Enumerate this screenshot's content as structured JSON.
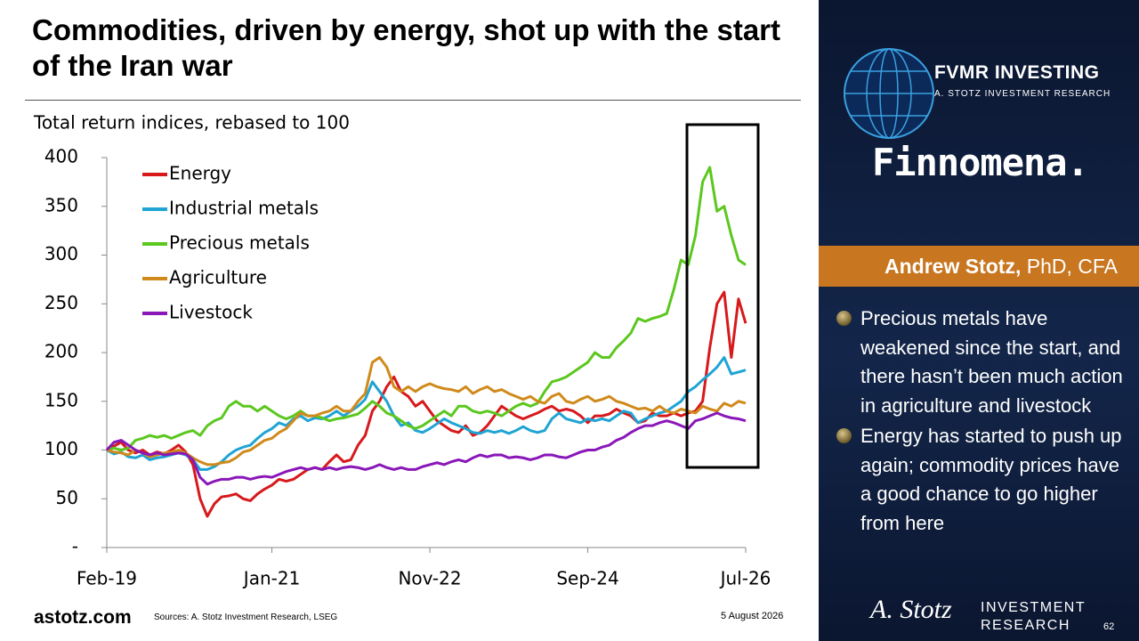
{
  "header": {
    "title": "Commodities, driven by energy, shot up with the start of the Iran war"
  },
  "chart_data": {
    "type": "line",
    "subtitle": "Total return indices, rebased to 100",
    "x": [
      "Feb-19",
      "Mar-19",
      "Apr-19",
      "May-19",
      "Jun-19",
      "Jul-19",
      "Aug-19",
      "Sep-19",
      "Oct-19",
      "Nov-19",
      "Dec-19",
      "Jan-20",
      "Feb-20",
      "Mar-20",
      "Apr-20",
      "May-20",
      "Jun-20",
      "Jul-20",
      "Aug-20",
      "Sep-20",
      "Oct-20",
      "Nov-20",
      "Dec-20",
      "Jan-21",
      "Feb-21",
      "Mar-21",
      "Apr-21",
      "May-21",
      "Jun-21",
      "Jul-21",
      "Aug-21",
      "Sep-21",
      "Oct-21",
      "Nov-21",
      "Dec-21",
      "Jan-22",
      "Feb-22",
      "Mar-22",
      "Apr-22",
      "May-22",
      "Jun-22",
      "Jul-22",
      "Aug-22",
      "Sep-22",
      "Oct-22",
      "Nov-22",
      "Dec-22",
      "Jan-23",
      "Feb-23",
      "Mar-23",
      "Apr-23",
      "May-23",
      "Jun-23",
      "Jul-23",
      "Aug-23",
      "Sep-23",
      "Oct-23",
      "Nov-23",
      "Dec-23",
      "Jan-24",
      "Feb-24",
      "Mar-24",
      "Apr-24",
      "May-24",
      "Jun-24",
      "Jul-24",
      "Aug-24",
      "Sep-24",
      "Oct-24",
      "Nov-24",
      "Dec-24",
      "Jan-25",
      "Feb-25",
      "Mar-25",
      "Apr-25",
      "May-25",
      "Jun-25",
      "Jul-25",
      "Aug-25",
      "Sep-25",
      "Oct-25",
      "Nov-25",
      "Dec-25",
      "Jan-26",
      "Feb-26",
      "Mar-26",
      "Apr-26",
      "May-26",
      "Jun-26",
      "Jul-26"
    ],
    "xticks": [
      "Feb-19",
      "Jan-21",
      "Nov-22",
      "Sep-24",
      "Jul-26"
    ],
    "ylim": [
      0,
      400
    ],
    "yticks": [
      {
        "value": 0,
        "label": "-"
      },
      50,
      100,
      150,
      200,
      250,
      300,
      350,
      400
    ],
    "legend": "upper left",
    "series": [
      {
        "name": "Energy",
        "color": "#d7191c",
        "values": [
          100,
          104,
          108,
          100,
          97,
          100,
          95,
          98,
          96,
          100,
          105,
          98,
          85,
          50,
          32,
          45,
          52,
          53,
          55,
          50,
          48,
          55,
          60,
          64,
          70,
          68,
          70,
          75,
          80,
          82,
          80,
          88,
          95,
          88,
          90,
          105,
          115,
          140,
          150,
          165,
          175,
          160,
          155,
          145,
          150,
          140,
          130,
          125,
          120,
          118,
          125,
          115,
          118,
          125,
          135,
          145,
          140,
          135,
          132,
          135,
          138,
          142,
          145,
          140,
          142,
          140,
          135,
          128,
          135,
          135,
          137,
          142,
          138,
          135,
          128,
          130,
          138,
          135,
          135,
          138,
          135,
          138,
          140,
          150,
          205,
          250,
          262,
          195,
          255,
          230
        ]
      },
      {
        "name": "Industrial metals",
        "color": "#1fa4d3",
        "values": [
          100,
          96,
          98,
          93,
          92,
          95,
          90,
          92,
          93,
          95,
          97,
          95,
          90,
          80,
          80,
          83,
          88,
          95,
          100,
          103,
          105,
          112,
          118,
          122,
          128,
          125,
          132,
          135,
          130,
          133,
          132,
          135,
          140,
          135,
          140,
          145,
          152,
          170,
          160,
          150,
          135,
          125,
          128,
          120,
          118,
          122,
          127,
          132,
          128,
          125,
          122,
          118,
          117,
          120,
          118,
          120,
          117,
          120,
          124,
          120,
          118,
          120,
          132,
          138,
          132,
          130,
          128,
          132,
          130,
          132,
          130,
          135,
          140,
          138,
          128,
          132,
          135,
          138,
          140,
          145,
          150,
          160,
          165,
          172,
          178,
          185,
          195,
          178,
          180,
          182
        ]
      },
      {
        "name": "Precious metals",
        "color": "#5cc71f",
        "values": [
          100,
          102,
          100,
          102,
          110,
          112,
          115,
          113,
          115,
          112,
          115,
          118,
          120,
          115,
          125,
          130,
          133,
          145,
          150,
          145,
          145,
          140,
          145,
          140,
          135,
          132,
          135,
          140,
          135,
          135,
          133,
          130,
          132,
          133,
          135,
          137,
          143,
          150,
          145,
          138,
          135,
          130,
          125,
          122,
          125,
          130,
          135,
          140,
          135,
          145,
          145,
          140,
          138,
          140,
          138,
          135,
          140,
          145,
          148,
          145,
          148,
          160,
          170,
          172,
          175,
          180,
          185,
          190,
          200,
          195,
          195,
          205,
          212,
          220,
          235,
          232,
          235,
          237,
          240,
          265,
          295,
          290,
          320,
          375,
          390,
          345,
          350,
          320,
          295,
          290
        ]
      },
      {
        "name": "Agriculture",
        "color": "#d08a1c",
        "values": [
          100,
          98,
          97,
          95,
          100,
          97,
          93,
          95,
          97,
          98,
          100,
          97,
          92,
          88,
          85,
          85,
          87,
          88,
          92,
          98,
          100,
          105,
          110,
          112,
          118,
          122,
          130,
          138,
          135,
          135,
          138,
          140,
          145,
          140,
          140,
          150,
          158,
          190,
          195,
          185,
          165,
          160,
          165,
          160,
          165,
          168,
          165,
          163,
          162,
          160,
          165,
          158,
          162,
          165,
          160,
          162,
          158,
          155,
          152,
          155,
          150,
          148,
          155,
          158,
          150,
          148,
          152,
          155,
          150,
          152,
          155,
          150,
          148,
          145,
          142,
          143,
          140,
          145,
          140,
          138,
          142,
          140,
          138,
          145,
          142,
          140,
          148,
          145,
          150,
          148
        ]
      },
      {
        "name": "Livestock",
        "color": "#8a17b8",
        "values": [
          100,
          108,
          110,
          105,
          100,
          97,
          95,
          97,
          95,
          96,
          97,
          96,
          90,
          72,
          65,
          68,
          70,
          70,
          72,
          72,
          70,
          72,
          73,
          72,
          75,
          78,
          80,
          82,
          80,
          82,
          80,
          82,
          80,
          82,
          83,
          82,
          80,
          82,
          85,
          82,
          80,
          82,
          80,
          80,
          83,
          85,
          87,
          85,
          88,
          90,
          88,
          92,
          95,
          93,
          95,
          95,
          92,
          93,
          92,
          90,
          92,
          95,
          95,
          93,
          92,
          95,
          98,
          100,
          100,
          103,
          105,
          110,
          113,
          118,
          122,
          125,
          125,
          128,
          130,
          128,
          125,
          122,
          130,
          132,
          135,
          138,
          135,
          133,
          132,
          130
        ]
      }
    ]
  },
  "sidebar": {
    "brand": "FVMR INVESTING",
    "brand_sub": "A. STOTZ INVESTMENT RESEARCH",
    "partner": "Finnomena.",
    "presenter_name": "Andrew Stotz,",
    "presenter_credentials": "PhD, CFA",
    "bullets": [
      "Precious metals have weakened since the start, and there hasn’t been much action in agriculture and livestock",
      "Energy has started to push up again; commodity prices have a good chance to go higher from here"
    ]
  },
  "footer": {
    "site": "astotz.com",
    "sources": "Sources: A. Stotz Investment Research, LSEG",
    "date": "5 August 2026",
    "signature": "A. Stotz",
    "logo_line1": "INVESTMENT",
    "logo_line2": "RESEARCH",
    "page_number": 62
  }
}
